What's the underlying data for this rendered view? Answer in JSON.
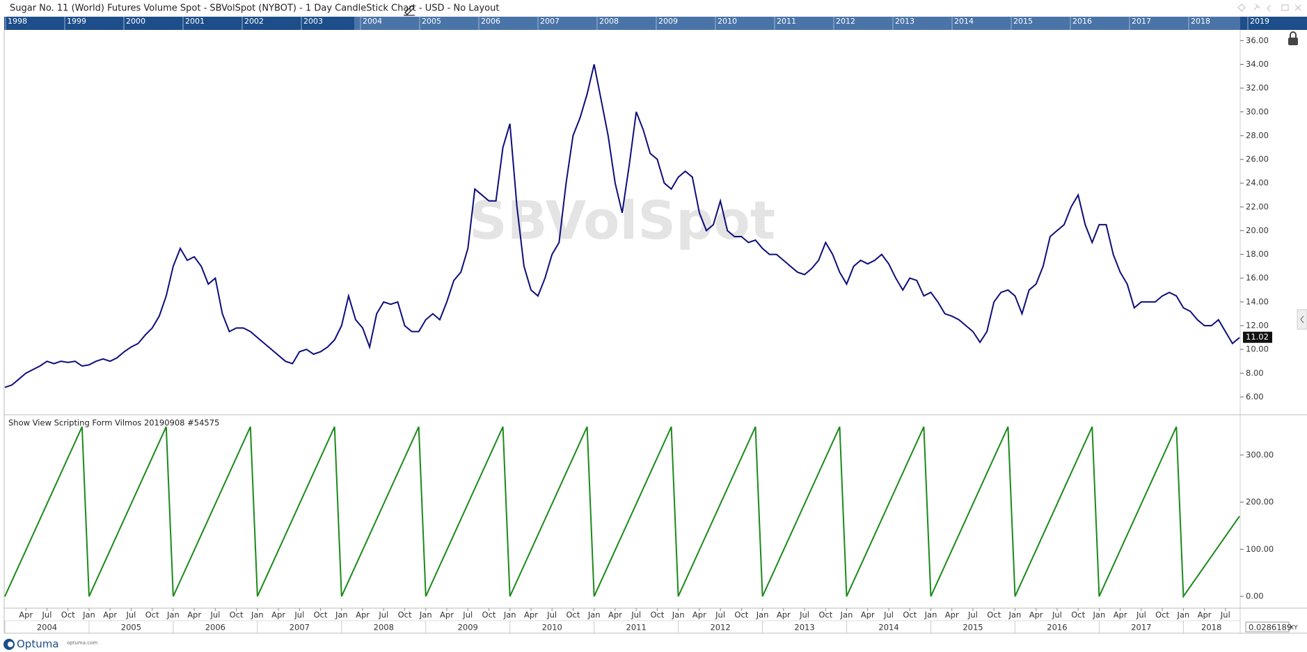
{
  "header": {
    "title": "Sugar No. 11 (World)  Futures Volume Spot - SBVolSpot (NYBOT) - 1 Day CandleStick Chart - USD - No Layout"
  },
  "navigator": {
    "years": [
      "1998",
      "1999",
      "2000",
      "2001",
      "2002",
      "2003",
      "2004",
      "2005",
      "2006",
      "2007",
      "2008",
      "2009",
      "2010",
      "2011",
      "2012",
      "2013",
      "2014",
      "2015",
      "2016",
      "2017",
      "2018",
      "2019"
    ]
  },
  "chart_data": [
    {
      "type": "line",
      "watermark": "SBVolSpot",
      "last_value": 11.02,
      "xlim": [
        "2004-01",
        "2018-09"
      ],
      "ylim": [
        4.5,
        36.9
      ],
      "yticks": [
        {
          "value": 6,
          "label": "6.00"
        },
        {
          "value": 8,
          "label": "8.00"
        },
        {
          "value": 10,
          "label": "10.00"
        },
        {
          "value": 12,
          "label": "12.00"
        },
        {
          "value": 14,
          "label": "14.00"
        },
        {
          "value": 16,
          "label": "16.00"
        },
        {
          "value": 18,
          "label": "18.00"
        },
        {
          "value": 20,
          "label": "20.00"
        },
        {
          "value": 22,
          "label": "22.00"
        },
        {
          "value": 24,
          "label": "24.00"
        },
        {
          "value": 26,
          "label": "26.00"
        },
        {
          "value": 28,
          "label": "28.00"
        },
        {
          "value": 30,
          "label": "30.00"
        },
        {
          "value": 32,
          "label": "32.00"
        },
        {
          "value": 34,
          "label": "34.00"
        },
        {
          "value": 36,
          "label": "36.00"
        }
      ],
      "x": [
        "2004-01",
        "2004-02",
        "2004-03",
        "2004-04",
        "2004-05",
        "2004-06",
        "2004-07",
        "2004-08",
        "2004-09",
        "2004-10",
        "2004-11",
        "2004-12",
        "2005-01",
        "2005-02",
        "2005-03",
        "2005-04",
        "2005-05",
        "2005-06",
        "2005-07",
        "2005-08",
        "2005-09",
        "2005-10",
        "2005-11",
        "2005-12",
        "2006-01",
        "2006-02",
        "2006-03",
        "2006-04",
        "2006-05",
        "2006-06",
        "2006-07",
        "2006-08",
        "2006-09",
        "2006-10",
        "2006-11",
        "2006-12",
        "2007-01",
        "2007-02",
        "2007-03",
        "2007-04",
        "2007-05",
        "2007-06",
        "2007-07",
        "2007-08",
        "2007-09",
        "2007-10",
        "2007-11",
        "2007-12",
        "2008-01",
        "2008-02",
        "2008-03",
        "2008-04",
        "2008-05",
        "2008-06",
        "2008-07",
        "2008-08",
        "2008-09",
        "2008-10",
        "2008-11",
        "2008-12",
        "2009-01",
        "2009-02",
        "2009-03",
        "2009-04",
        "2009-05",
        "2009-06",
        "2009-07",
        "2009-08",
        "2009-09",
        "2009-10",
        "2009-11",
        "2009-12",
        "2010-01",
        "2010-02",
        "2010-03",
        "2010-04",
        "2010-05",
        "2010-06",
        "2010-07",
        "2010-08",
        "2010-09",
        "2010-10",
        "2010-11",
        "2010-12",
        "2011-01",
        "2011-02",
        "2011-03",
        "2011-04",
        "2011-05",
        "2011-06",
        "2011-07",
        "2011-08",
        "2011-09",
        "2011-10",
        "2011-11",
        "2011-12",
        "2012-01",
        "2012-02",
        "2012-03",
        "2012-04",
        "2012-05",
        "2012-06",
        "2012-07",
        "2012-08",
        "2012-09",
        "2012-10",
        "2012-11",
        "2012-12",
        "2013-01",
        "2013-02",
        "2013-03",
        "2013-04",
        "2013-05",
        "2013-06",
        "2013-07",
        "2013-08",
        "2013-09",
        "2013-10",
        "2013-11",
        "2013-12",
        "2014-01",
        "2014-02",
        "2014-03",
        "2014-04",
        "2014-05",
        "2014-06",
        "2014-07",
        "2014-08",
        "2014-09",
        "2014-10",
        "2014-11",
        "2014-12",
        "2015-01",
        "2015-02",
        "2015-03",
        "2015-04",
        "2015-05",
        "2015-06",
        "2015-07",
        "2015-08",
        "2015-09",
        "2015-10",
        "2015-11",
        "2015-12",
        "2016-01",
        "2016-02",
        "2016-03",
        "2016-04",
        "2016-05",
        "2016-06",
        "2016-07",
        "2016-08",
        "2016-09",
        "2016-10",
        "2016-11",
        "2016-12",
        "2017-01",
        "2017-02",
        "2017-03",
        "2017-04",
        "2017-05",
        "2017-06",
        "2017-07",
        "2017-08",
        "2017-09",
        "2017-10",
        "2017-11",
        "2017-12",
        "2018-01",
        "2018-02",
        "2018-03",
        "2018-04",
        "2018-05",
        "2018-06",
        "2018-07",
        "2018-08",
        "2018-09"
      ],
      "series": [
        {
          "color": "#0d0d7a",
          "values": [
            6.8,
            7.0,
            7.5,
            8.0,
            8.3,
            8.6,
            9.0,
            8.8,
            9.0,
            8.9,
            9.0,
            8.6,
            8.7,
            9.0,
            9.2,
            9.0,
            9.3,
            9.8,
            10.2,
            10.5,
            11.2,
            11.8,
            12.8,
            14.5,
            17.0,
            18.5,
            17.5,
            17.8,
            17.0,
            15.5,
            16.0,
            13.0,
            11.5,
            11.8,
            11.8,
            11.5,
            11.0,
            10.5,
            10.0,
            9.5,
            9.0,
            8.8,
            9.8,
            10.0,
            9.6,
            9.8,
            10.2,
            10.8,
            12.0,
            14.5,
            12.5,
            11.8,
            10.2,
            13.0,
            14.0,
            13.8,
            14.0,
            12.0,
            11.5,
            11.5,
            12.5,
            13.0,
            12.5,
            14.0,
            15.8,
            16.5,
            18.5,
            23.5,
            23.0,
            22.5,
            22.5,
            27.0,
            29.0,
            22.0,
            17.0,
            15.0,
            14.5,
            16.0,
            18.0,
            19.0,
            24.0,
            28.0,
            29.5,
            31.5,
            34.0,
            31.0,
            28.0,
            24.0,
            21.5,
            25.5,
            30.0,
            28.5,
            26.5,
            26.0,
            24.0,
            23.5,
            24.5,
            25.0,
            24.5,
            21.5,
            20.0,
            20.5,
            22.5,
            20.0,
            19.5,
            19.5,
            19.0,
            19.2,
            18.5,
            18.0,
            18.0,
            17.5,
            17.0,
            16.5,
            16.3,
            16.8,
            17.5,
            19.0,
            18.0,
            16.5,
            15.5,
            17.0,
            17.5,
            17.2,
            17.5,
            18.0,
            17.2,
            16.0,
            15.0,
            16.0,
            15.8,
            14.5,
            14.8,
            14.0,
            13.0,
            12.8,
            12.5,
            12.0,
            11.5,
            10.6,
            11.5,
            14.0,
            14.8,
            15.0,
            14.5,
            13.0,
            15.0,
            15.5,
            17.0,
            19.5,
            20.0,
            20.5,
            22.0,
            23.0,
            20.5,
            19.0,
            20.5,
            20.5,
            18.0,
            16.5,
            15.5,
            13.5,
            14.0,
            14.0,
            14.0,
            14.5,
            14.8,
            14.5,
            13.5,
            13.2,
            12.5,
            12.0,
            12.0,
            12.5,
            11.5,
            10.5,
            11.0
          ]
        }
      ]
    },
    {
      "type": "line",
      "title": "Show View Scripting Form Vilmos 20190908 #54575",
      "xlim": [
        "2004-01",
        "2018-09"
      ],
      "ylim": [
        -25,
        384
      ],
      "yticks": [
        {
          "value": 0,
          "label": "0.00"
        },
        {
          "value": 100,
          "label": "100.00"
        },
        {
          "value": 200,
          "label": "200.00"
        },
        {
          "value": 300,
          "label": "300.00"
        }
      ],
      "x": [
        "2004-01",
        "2004-12",
        "2005-01",
        "2005-12",
        "2006-01",
        "2006-12",
        "2007-01",
        "2007-12",
        "2008-01",
        "2008-12",
        "2009-01",
        "2009-12",
        "2010-01",
        "2010-12",
        "2011-01",
        "2011-12",
        "2012-01",
        "2012-12",
        "2013-01",
        "2013-12",
        "2014-01",
        "2014-12",
        "2015-01",
        "2015-12",
        "2016-01",
        "2016-12",
        "2017-01",
        "2017-12",
        "2018-01",
        "2018-09"
      ],
      "series": [
        {
          "color": "#1a8a1a",
          "values": [
            0,
            360,
            0,
            360,
            0,
            360,
            0,
            360,
            0,
            360,
            0,
            360,
            0,
            360,
            0,
            360,
            0,
            360,
            0,
            360,
            0,
            360,
            0,
            360,
            0,
            360,
            0,
            360,
            0,
            170
          ]
        }
      ],
      "xticks": [
        {
          "value": "2004-04",
          "label": "Apr"
        },
        {
          "value": "2004-07",
          "label": "Jul"
        },
        {
          "value": "2004-10",
          "label": "Oct"
        },
        {
          "value": "2005-01",
          "label": "Jan"
        },
        {
          "value": "2005-04",
          "label": "Apr"
        },
        {
          "value": "2005-07",
          "label": "Jul"
        },
        {
          "value": "2005-10",
          "label": "Oct"
        },
        {
          "value": "2006-01",
          "label": "Jan"
        },
        {
          "value": "2006-04",
          "label": "Apr"
        },
        {
          "value": "2006-07",
          "label": "Jul"
        },
        {
          "value": "2006-10",
          "label": "Oct"
        },
        {
          "value": "2007-01",
          "label": "Jan"
        },
        {
          "value": "2007-04",
          "label": "Apr"
        },
        {
          "value": "2007-07",
          "label": "Jul"
        },
        {
          "value": "2007-10",
          "label": "Oct"
        },
        {
          "value": "2008-01",
          "label": "Jan"
        },
        {
          "value": "2008-04",
          "label": "Apr"
        },
        {
          "value": "2008-07",
          "label": "Jul"
        },
        {
          "value": "2008-10",
          "label": "Oct"
        },
        {
          "value": "2009-01",
          "label": "Jan"
        },
        {
          "value": "2009-04",
          "label": "Apr"
        },
        {
          "value": "2009-07",
          "label": "Jul"
        },
        {
          "value": "2009-10",
          "label": "Oct"
        },
        {
          "value": "2010-01",
          "label": "Jan"
        },
        {
          "value": "2010-04",
          "label": "Apr"
        },
        {
          "value": "2010-07",
          "label": "Jul"
        },
        {
          "value": "2010-10",
          "label": "Oct"
        },
        {
          "value": "2011-01",
          "label": "Jan"
        },
        {
          "value": "2011-04",
          "label": "Apr"
        },
        {
          "value": "2011-07",
          "label": "Jul"
        },
        {
          "value": "2011-10",
          "label": "Oct"
        },
        {
          "value": "2012-01",
          "label": "Jan"
        },
        {
          "value": "2012-04",
          "label": "Apr"
        },
        {
          "value": "2012-07",
          "label": "Jul"
        },
        {
          "value": "2012-10",
          "label": "Oct"
        },
        {
          "value": "2013-01",
          "label": "Jan"
        },
        {
          "value": "2013-04",
          "label": "Apr"
        },
        {
          "value": "2013-07",
          "label": "Jul"
        },
        {
          "value": "2013-10",
          "label": "Oct"
        },
        {
          "value": "2014-01",
          "label": "Jan"
        },
        {
          "value": "2014-04",
          "label": "Apr"
        },
        {
          "value": "2014-07",
          "label": "Jul"
        },
        {
          "value": "2014-10",
          "label": "Oct"
        },
        {
          "value": "2015-01",
          "label": "Jan"
        },
        {
          "value": "2015-04",
          "label": "Apr"
        },
        {
          "value": "2015-07",
          "label": "Jul"
        },
        {
          "value": "2015-10",
          "label": "Oct"
        },
        {
          "value": "2016-01",
          "label": "Jan"
        },
        {
          "value": "2016-04",
          "label": "Apr"
        },
        {
          "value": "2016-07",
          "label": "Jul"
        },
        {
          "value": "2016-10",
          "label": "Oct"
        },
        {
          "value": "2017-01",
          "label": "Jan"
        },
        {
          "value": "2017-04",
          "label": "Apr"
        },
        {
          "value": "2017-07",
          "label": "Jul"
        },
        {
          "value": "2017-10",
          "label": "Oct"
        },
        {
          "value": "2018-01",
          "label": "Jan"
        },
        {
          "value": "2018-04",
          "label": "Apr"
        },
        {
          "value": "2018-07",
          "label": "Jul"
        }
      ],
      "xyears": [
        "2004",
        "2005",
        "2006",
        "2007",
        "2008",
        "2009",
        "2010",
        "2011",
        "2012",
        "2013",
        "2014",
        "2015",
        "2016",
        "2017",
        "2018"
      ]
    }
  ],
  "footer": {
    "logo": "Optuma",
    "url": "optuma.com",
    "readout": "0.0286189",
    "mode": "XY"
  }
}
